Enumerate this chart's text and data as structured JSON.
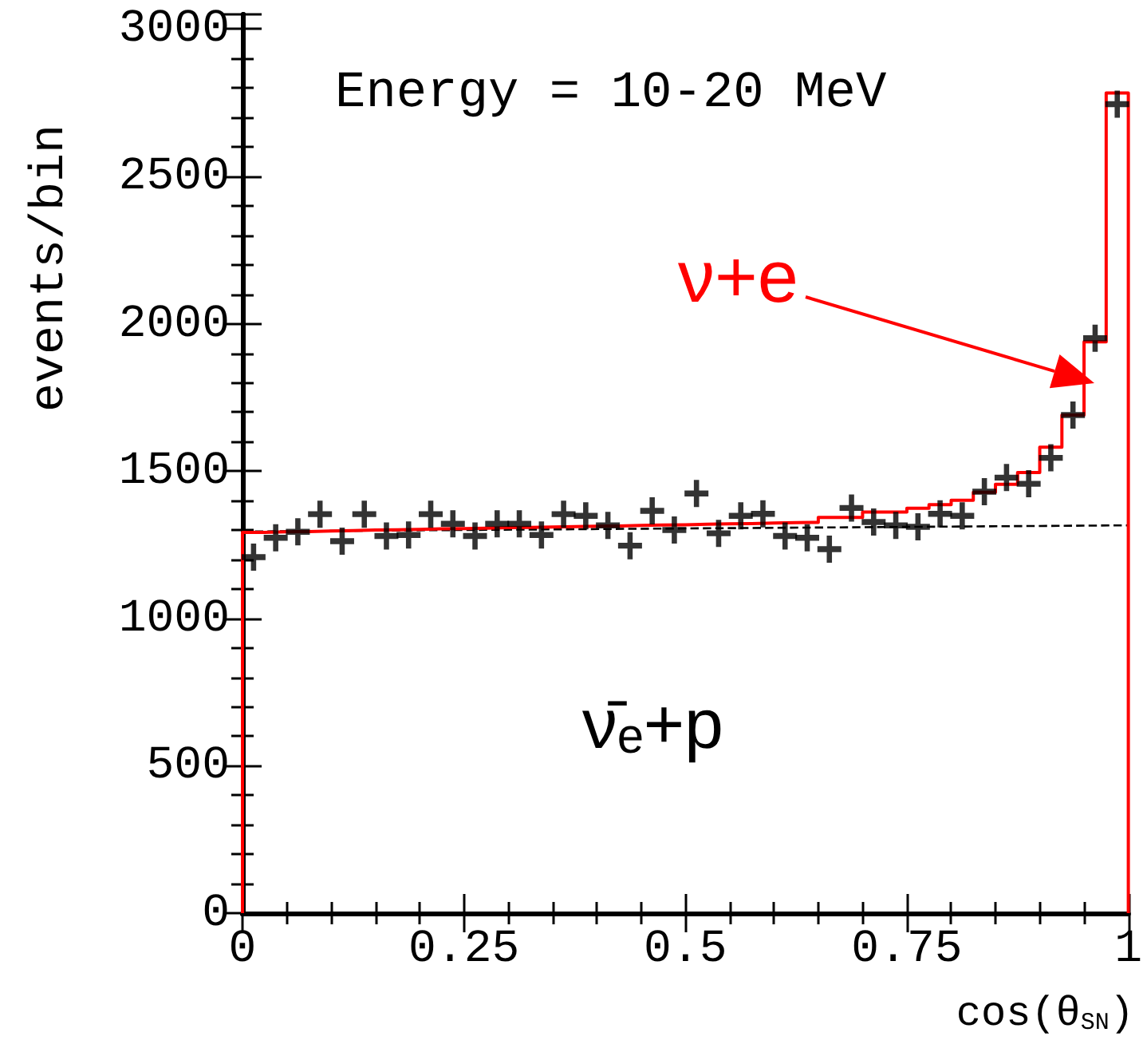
{
  "chart_data": {
    "type": "histogram",
    "xlabel": "cos(θ$_{SN}$)",
    "ylabel": "events/bin",
    "xlim": [
      0,
      1
    ],
    "xticks": [
      0,
      0.25,
      0.5,
      0.75,
      1
    ],
    "ylim": [
      0,
      3050
    ],
    "yticks": [
      0,
      500,
      1000,
      1500,
      2000,
      2500,
      3000
    ],
    "bins": [
      0,
      0.025,
      0.05,
      0.075,
      0.1,
      0.125,
      0.15,
      0.175,
      0.2,
      0.225,
      0.25,
      0.275,
      0.3,
      0.325,
      0.35,
      0.375,
      0.4,
      0.425,
      0.45,
      0.475,
      0.5,
      0.525,
      0.55,
      0.575,
      0.6,
      0.625,
      0.65,
      0.675,
      0.7,
      0.725,
      0.75,
      0.775,
      0.8,
      0.825,
      0.85,
      0.875,
      0.9,
      0.925,
      0.95,
      0.975,
      1
    ],
    "series": [
      {
        "type": "histogram",
        "color": "#ff0000",
        "values": [
          1292,
          1294,
          1295,
          1297,
          1298,
          1300,
          1301,
          1302,
          1304,
          1305,
          1306,
          1308,
          1309,
          1310,
          1312,
          1313,
          1314,
          1316,
          1317,
          1318,
          1320,
          1321,
          1322,
          1324,
          1325,
          1326,
          1343,
          1343,
          1361,
          1361,
          1374,
          1386,
          1401,
          1428,
          1455,
          1495,
          1581,
          1690,
          1939,
          2783
        ]
      },
      {
        "type": "scatter",
        "color": "#000000",
        "marker": "cross",
        "x": [
          0.0125,
          0.0375,
          0.0625,
          0.0875,
          0.1125,
          0.1375,
          0.1625,
          0.1875,
          0.2125,
          0.2375,
          0.2625,
          0.2875,
          0.3125,
          0.3375,
          0.3625,
          0.3875,
          0.4125,
          0.4375,
          0.4625,
          0.4875,
          0.5125,
          0.5375,
          0.5625,
          0.5875,
          0.6125,
          0.6375,
          0.6625,
          0.6875,
          0.7125,
          0.7375,
          0.7625,
          0.7875,
          0.8125,
          0.8375,
          0.8625,
          0.8875,
          0.9125,
          0.9375,
          0.9625,
          0.9875
        ],
        "values": [
          1208,
          1274,
          1294,
          1354,
          1262,
          1354,
          1280,
          1283,
          1354,
          1321,
          1280,
          1321,
          1321,
          1283,
          1354,
          1348,
          1316,
          1247,
          1365,
          1300,
          1424,
          1289,
          1348,
          1355,
          1280,
          1274,
          1235,
          1375,
          1327,
          1316,
          1311,
          1355,
          1348,
          1430,
          1478,
          1457,
          1545,
          1690,
          1951,
          2745
        ]
      },
      {
        "type": "line",
        "color": "#000000",
        "line_style": "dashed",
        "x": [
          0,
          1
        ],
        "values": [
          1295,
          1316
        ]
      }
    ],
    "annotations": [
      "Energy = 10-20 MeV",
      "ν̄ₑ+p",
      "ν+e"
    ]
  }
}
